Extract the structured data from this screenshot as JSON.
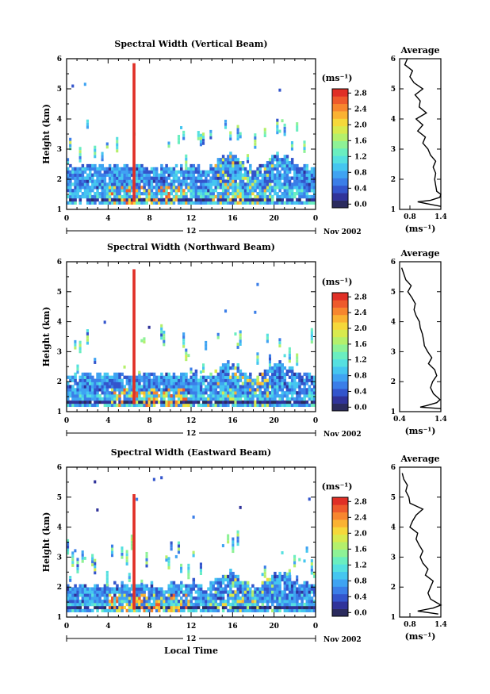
{
  "colors": {
    "scale": [
      "#2b2b5e",
      "#30339a",
      "#3355cc",
      "#3b7ee8",
      "#3fa3f2",
      "#45c6f0",
      "#55e0e0",
      "#6aeec0",
      "#8ef296",
      "#b4f06c",
      "#d8ea4e",
      "#f5d83a",
      "#fab232",
      "#f7862e",
      "#ee5a2c",
      "#e02f26"
    ],
    "profile_line": "#000000",
    "axis": "#000000"
  },
  "chart_data": [
    {
      "type": "heatmap",
      "title": "Spectral Width (Vertical Beam)",
      "ylabel": "Height (km)",
      "xlabel": "",
      "x_ticks": [
        "0",
        "4",
        "8",
        "12",
        "16",
        "20",
        "0"
      ],
      "x_range": [
        0,
        24
      ],
      "y_ticks": [
        "1",
        "2",
        "3",
        "4",
        "5",
        "6"
      ],
      "y_range": [
        1,
        6
      ],
      "date_center": "12",
      "date_label": "Nov 2002",
      "colorbar_unit": "(ms⁻¹)",
      "colorbar_ticks": [
        "0.0",
        "0.4",
        "0.8",
        "1.2",
        "1.6",
        "2.0",
        "2.4",
        "2.8"
      ],
      "colorbar_range": [
        0,
        3.0
      ],
      "layer_top_km": 2.45,
      "spike": {
        "x_hour": 6.5,
        "top_km": 5.85,
        "value": 2.9
      },
      "seed": 11,
      "profile": {
        "title": "Average",
        "xlabel": "(ms⁻¹)",
        "x_ticks": [
          "0.8",
          "1.4"
        ],
        "x_range": [
          0.6,
          1.4
        ],
        "heights": [
          1.1,
          1.2,
          1.25,
          1.3,
          1.4,
          1.5,
          1.6,
          1.8,
          2.0,
          2.2,
          2.4,
          2.6,
          2.8,
          3.0,
          3.2,
          3.4,
          3.6,
          3.8,
          4.0,
          4.2,
          4.4,
          4.6,
          4.8,
          5.0,
          5.2,
          5.4,
          5.6,
          5.8,
          6.0
        ],
        "values": [
          1.4,
          1.1,
          0.95,
          1.2,
          1.38,
          1.4,
          1.32,
          1.3,
          1.28,
          1.3,
          1.25,
          1.3,
          1.2,
          1.15,
          1.05,
          1.1,
          0.95,
          1.05,
          0.92,
          1.12,
          0.98,
          1.0,
          0.9,
          1.05,
          0.88,
          0.8,
          0.85,
          0.7,
          0.75
        ]
      }
    },
    {
      "type": "heatmap",
      "title": "Spectral Width (Northward Beam)",
      "ylabel": "Height (km)",
      "xlabel": "",
      "x_ticks": [
        "0",
        "4",
        "8",
        "12",
        "16",
        "20",
        "0"
      ],
      "x_range": [
        0,
        24
      ],
      "y_ticks": [
        "1",
        "2",
        "3",
        "4",
        "5",
        "6"
      ],
      "y_range": [
        1,
        6
      ],
      "date_center": "12",
      "date_label": "Nov 2002",
      "colorbar_unit": "(ms⁻¹)",
      "colorbar_ticks": [
        "0.0",
        "0.4",
        "0.8",
        "1.2",
        "1.6",
        "2.0",
        "2.4",
        "2.8"
      ],
      "colorbar_range": [
        0,
        3.0
      ],
      "layer_top_km": 2.25,
      "spike": {
        "x_hour": 6.5,
        "top_km": 5.75,
        "value": 2.9
      },
      "seed": 29,
      "profile": {
        "title": "Average",
        "xlabel": "(ms⁻¹)",
        "x_ticks": [
          "0.4",
          "1.4"
        ],
        "x_range": [
          0.4,
          1.4
        ],
        "heights": [
          1.1,
          1.15,
          1.2,
          1.3,
          1.4,
          1.5,
          1.6,
          1.8,
          2.0,
          2.2,
          2.4,
          2.6,
          2.8,
          3.0,
          3.2,
          3.4,
          3.6,
          3.8,
          4.0,
          4.2,
          4.4,
          4.6,
          4.8,
          5.0,
          5.2,
          5.4,
          5.6,
          5.8
        ],
        "values": [
          1.4,
          0.9,
          1.05,
          1.3,
          1.38,
          1.3,
          1.22,
          1.15,
          1.2,
          1.3,
          1.25,
          1.1,
          1.18,
          1.08,
          1.0,
          0.98,
          0.95,
          0.9,
          0.88,
          0.8,
          0.75,
          0.78,
          0.7,
          0.6,
          0.68,
          0.55,
          0.5,
          0.45
        ]
      }
    },
    {
      "type": "heatmap",
      "title": "Spectral Width (Eastward Beam)",
      "ylabel": "Height (km)",
      "xlabel": "Local Time",
      "x_ticks": [
        "0",
        "4",
        "8",
        "12",
        "16",
        "20",
        "0"
      ],
      "x_range": [
        0,
        24
      ],
      "y_ticks": [
        "1",
        "2",
        "3",
        "4",
        "5",
        "6"
      ],
      "y_range": [
        1,
        6
      ],
      "date_center": "12",
      "date_label": "Nov 2002",
      "colorbar_unit": "(ms⁻¹)",
      "colorbar_ticks": [
        "0.0",
        "0.4",
        "0.8",
        "1.2",
        "1.6",
        "2.0",
        "2.4",
        "2.8"
      ],
      "colorbar_range": [
        0,
        3.0
      ],
      "layer_top_km": 2.1,
      "spike": {
        "x_hour": 6.5,
        "top_km": 5.1,
        "value": 2.9
      },
      "seed": 47,
      "profile": {
        "title": "Average",
        "xlabel": "(ms⁻¹)",
        "x_ticks": [
          "0.8",
          "1.4"
        ],
        "x_range": [
          0.6,
          1.4
        ],
        "heights": [
          1.1,
          1.2,
          1.25,
          1.3,
          1.4,
          1.5,
          1.6,
          1.8,
          2.0,
          2.2,
          2.4,
          2.6,
          2.8,
          3.0,
          3.2,
          3.4,
          3.6,
          3.8,
          4.0,
          4.2,
          4.4,
          4.6,
          4.8,
          5.0,
          5.2,
          5.4,
          5.6,
          5.8
        ],
        "values": [
          1.35,
          0.95,
          1.1,
          1.25,
          1.4,
          1.3,
          1.2,
          1.15,
          1.2,
          1.25,
          1.1,
          1.15,
          1.05,
          1.0,
          1.05,
          0.98,
          0.92,
          0.95,
          0.8,
          0.85,
          0.92,
          1.05,
          0.8,
          0.78,
          0.72,
          0.75,
          0.68,
          0.65
        ]
      }
    }
  ]
}
